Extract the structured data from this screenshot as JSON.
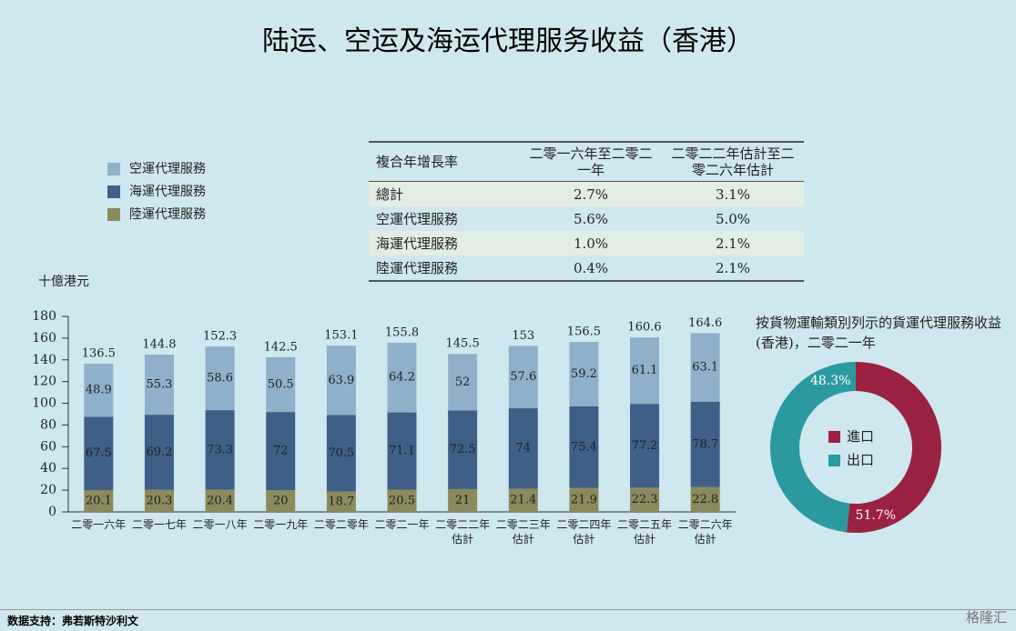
{
  "title": "陆运、空运及海运代理服务收益（香港）",
  "chart_data": [
    {
      "type": "bar",
      "stacked": true,
      "y_unit": "十億港元",
      "categories": [
        "二零一六年",
        "二零一七年",
        "二零一八年",
        "二零一九年",
        "二零二零年",
        "二零二一年",
        "二零二二年\n估計",
        "二零二三年\n估計",
        "二零二四年\n估計",
        "二零二五年\n估計",
        "二零二六年\n估計"
      ],
      "series": [
        {
          "name": "空運代理服務",
          "color": "#8fb0c8",
          "values": [
            48.9,
            55.3,
            58.6,
            50.5,
            63.9,
            64.2,
            52.0,
            57.6,
            59.2,
            61.1,
            63.1
          ]
        },
        {
          "name": "海運代理服務",
          "color": "#3f5f88",
          "values": [
            67.5,
            69.2,
            73.3,
            72.0,
            70.5,
            71.1,
            72.5,
            74.0,
            75.4,
            77.2,
            78.7
          ]
        },
        {
          "name": "陸運代理服務",
          "color": "#8a8a5c",
          "values": [
            20.1,
            20.3,
            20.4,
            20.0,
            18.7,
            20.5,
            21.0,
            21.4,
            21.9,
            22.3,
            22.8
          ]
        }
      ],
      "totals": [
        136.5,
        144.8,
        152.3,
        142.5,
        153.1,
        155.8,
        145.5,
        153.0,
        156.5,
        160.6,
        164.6
      ],
      "ylim": [
        0,
        180
      ],
      "yticks": [
        0,
        20,
        40,
        60,
        80,
        100,
        120,
        140,
        160,
        180
      ]
    },
    {
      "type": "pie",
      "donut": true,
      "title": "按貨物運輸類別列示的貨運代理服務收益(香港)，二零二一年",
      "categories": [
        "進口",
        "出口"
      ],
      "colors": [
        "#9b2143",
        "#2b9aa0"
      ],
      "values": [
        51.7,
        48.3
      ],
      "value_labels": [
        "51.7%",
        "48.3%"
      ]
    }
  ],
  "table": {
    "header": [
      "複合年增長率",
      "二零一六年至二零二一年",
      "二零二二年估計至二零二六年估計"
    ],
    "rows": [
      [
        "總計",
        "2.7%",
        "3.1%"
      ],
      [
        "空運代理服務",
        "5.6%",
        "5.0%"
      ],
      [
        "海運代理服務",
        "1.0%",
        "2.1%"
      ],
      [
        "陸運代理服務",
        "0.4%",
        "2.1%"
      ]
    ]
  },
  "source": "数据支持：弗若斯特沙利文",
  "logo": "格隆汇"
}
